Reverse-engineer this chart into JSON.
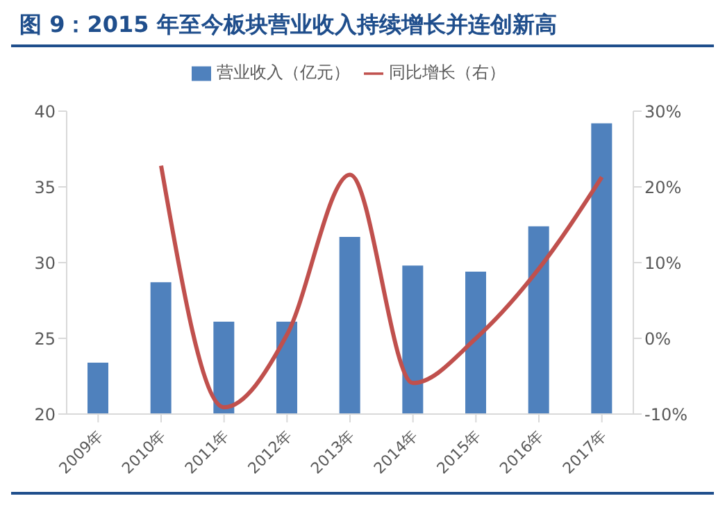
{
  "chart_data": {
    "type": "bar",
    "title": "图 9：2015 年至今板块营业收入持续增长并连创新高",
    "categories": [
      "2009年",
      "2010年",
      "2011年",
      "2012年",
      "2013年",
      "2014年",
      "2015年",
      "2016年",
      "2017年"
    ],
    "series": [
      {
        "name": "营业收入（亿元）",
        "color": "#4f81bd",
        "values": [
          23.4,
          28.7,
          26.1,
          26.1,
          31.7,
          29.8,
          29.4,
          32.4,
          39.2
        ]
      },
      {
        "name": "同比增长（右）",
        "type": "line",
        "axis": "y2",
        "color": "#c0504d",
        "values": [
          null,
          22.8,
          -9.1,
          0.5,
          21.6,
          -5.9,
          0,
          9.2,
          21.3
        ]
      }
    ],
    "ylim": [
      20,
      40
    ],
    "yticks": [
      20,
      25,
      30,
      35,
      40
    ],
    "y2lim": [
      -10,
      30
    ],
    "y2ticks": [
      {
        "value": -10,
        "label": "-10%"
      },
      {
        "value": 0,
        "label": "0%"
      },
      {
        "value": 10,
        "label": "10%"
      },
      {
        "value": 20,
        "label": "20%"
      },
      {
        "value": 30,
        "label": "30%"
      }
    ],
    "legend": "top",
    "marker": "none",
    "line_style": "solid"
  }
}
